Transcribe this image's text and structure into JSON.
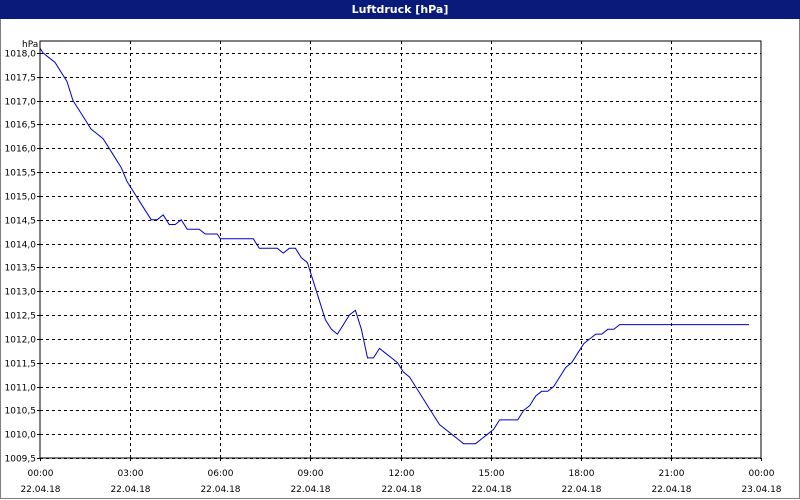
{
  "window": {
    "title": "Luftdruck [hPa]"
  },
  "colors": {
    "titlebar": "#0a1a7a",
    "line": "#0000cc",
    "grid": "#000000"
  },
  "chart_data": {
    "type": "line",
    "title": "Luftdruck [hPa]",
    "ylabel": "hPa",
    "xlabel": "",
    "ylim": [
      1009.5,
      1018.25
    ],
    "xlim_hours": [
      0,
      24
    ],
    "grid": true,
    "y_ticks": [
      "1009,5",
      "1010,0",
      "1010,5",
      "1011,0",
      "1011,5",
      "1012,0",
      "1012,5",
      "1013,0",
      "1013,5",
      "1014,0",
      "1014,5",
      "1015,0",
      "1015,5",
      "1016,0",
      "1016,5",
      "1017,0",
      "1017,5",
      "1018,0"
    ],
    "x_ticks": [
      {
        "time": "00:00",
        "date": "22.04.18"
      },
      {
        "time": "03:00",
        "date": "22.04.18"
      },
      {
        "time": "06:00",
        "date": "22.04.18"
      },
      {
        "time": "09:00",
        "date": "22.04.18"
      },
      {
        "time": "12:00",
        "date": "22.04.18"
      },
      {
        "time": "15:00",
        "date": "22.04.18"
      },
      {
        "time": "18:00",
        "date": "22.04.18"
      },
      {
        "time": "21:00",
        "date": "22.04.18"
      },
      {
        "time": "00:00",
        "date": "23.04.18"
      }
    ],
    "series": [
      {
        "x": [
          0.0,
          0.1,
          0.3,
          0.5,
          0.7,
          0.9,
          1.1,
          1.3,
          1.5,
          1.7,
          1.9,
          2.1,
          2.3,
          2.5,
          2.7,
          2.9,
          3.1,
          3.3,
          3.5,
          3.7,
          3.9,
          4.1,
          4.3,
          4.5,
          4.7,
          4.9,
          5.1,
          5.3,
          5.5,
          5.7,
          5.8,
          5.9,
          6.0,
          6.1,
          6.3,
          6.5,
          6.7,
          6.9,
          7.1,
          7.3,
          7.5,
          7.7,
          7.9,
          8.1,
          8.3,
          8.5,
          8.7,
          8.9,
          9.0,
          9.1,
          9.3,
          9.5,
          9.7,
          9.9,
          10.1,
          10.3,
          10.5,
          10.7,
          10.9,
          11.1,
          11.3,
          11.5,
          11.7,
          11.9,
          12.1,
          12.3,
          12.5,
          12.7,
          12.9,
          13.1,
          13.2,
          13.3,
          13.5,
          13.7,
          13.9,
          14.1,
          14.3,
          14.5,
          14.7,
          14.9,
          15.1,
          15.3,
          15.5,
          15.7,
          15.9,
          16.1,
          16.3,
          16.5,
          16.7,
          16.9,
          17.1,
          17.3,
          17.5,
          17.7,
          17.9,
          18.1,
          18.3,
          18.5,
          18.7,
          18.9,
          19.1,
          19.3,
          19.5,
          19.7,
          19.9,
          20.1,
          20.3,
          20.5,
          20.7,
          20.9,
          21.1,
          21.3,
          21.5,
          21.7,
          21.9,
          22.1,
          22.3,
          22.5,
          22.7,
          22.9,
          23.1,
          23.3,
          23.5,
          23.6
        ],
        "y": [
          1018.1,
          1018.0,
          1017.9,
          1017.8,
          1017.6,
          1017.4,
          1017.0,
          1016.8,
          1016.6,
          1016.4,
          1016.3,
          1016.2,
          1016.0,
          1015.8,
          1015.6,
          1015.3,
          1015.1,
          1014.9,
          1014.7,
          1014.5,
          1014.5,
          1014.6,
          1014.4,
          1014.4,
          1014.5,
          1014.3,
          1014.3,
          1014.3,
          1014.2,
          1014.2,
          1014.2,
          1014.2,
          1014.1,
          1014.1,
          1014.1,
          1014.1,
          1014.1,
          1014.1,
          1014.1,
          1013.9,
          1013.9,
          1013.9,
          1013.9,
          1013.8,
          1013.9,
          1013.9,
          1013.7,
          1013.6,
          1013.4,
          1013.2,
          1012.8,
          1012.4,
          1012.2,
          1012.1,
          1012.3,
          1012.5,
          1012.6,
          1012.2,
          1011.6,
          1011.6,
          1011.8,
          1011.7,
          1011.6,
          1011.5,
          1011.3,
          1011.2,
          1011.0,
          1010.8,
          1010.6,
          1010.4,
          1010.3,
          1010.2,
          1010.1,
          1010.0,
          1009.9,
          1009.8,
          1009.8,
          1009.8,
          1009.9,
          1010.0,
          1010.1,
          1010.3,
          1010.3,
          1010.3,
          1010.3,
          1010.5,
          1010.6,
          1010.8,
          1010.9,
          1010.9,
          1011.0,
          1011.2,
          1011.4,
          1011.5,
          1011.7,
          1011.9,
          1012.0,
          1012.1,
          1012.1,
          1012.2,
          1012.2,
          1012.3,
          1012.3,
          1012.3,
          1012.3,
          1012.3,
          1012.3,
          1012.3,
          1012.3,
          1012.3,
          1012.3,
          1012.3,
          1012.3,
          1012.3,
          1012.3,
          1012.3,
          1012.3,
          1012.3,
          1012.3,
          1012.3,
          1012.3,
          1012.3,
          1012.3,
          1012.3
        ]
      }
    ]
  }
}
